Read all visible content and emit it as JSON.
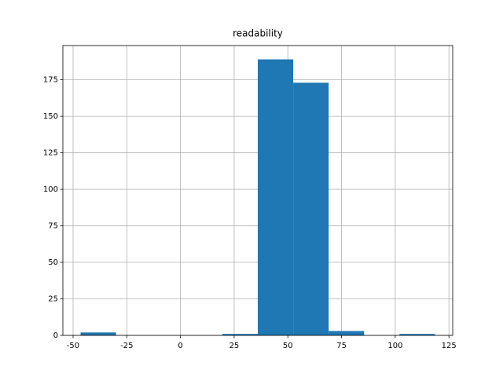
{
  "chart_data": {
    "type": "histogram",
    "title": "readability",
    "bins": [
      -46.5,
      -30,
      -13.5,
      3,
      19.5,
      36,
      52.5,
      69,
      85.5,
      102,
      118.5
    ],
    "values": [
      2,
      0,
      0,
      0,
      1,
      189,
      173,
      3,
      0,
      1
    ],
    "color": "#1f77b4",
    "xlim": [
      -54.75,
      126.75
    ],
    "xticks": [
      -50,
      -25,
      0,
      25,
      50,
      75,
      100,
      125
    ],
    "ylim": [
      0,
      198.45
    ],
    "yticks": [
      0,
      25,
      50,
      75,
      100,
      125,
      150,
      175
    ],
    "grid": true
  }
}
